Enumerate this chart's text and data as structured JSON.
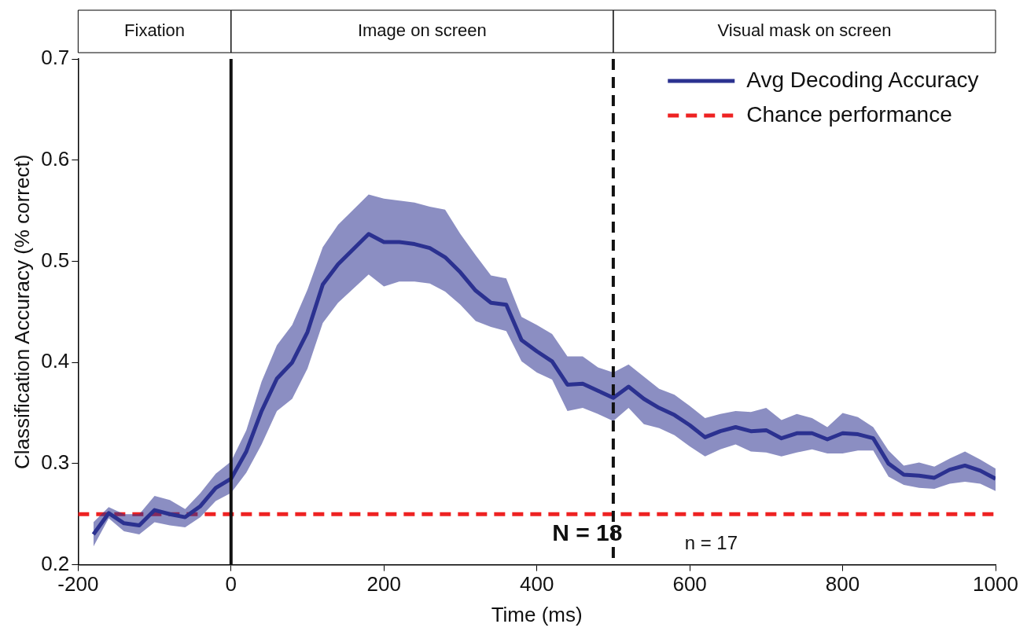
{
  "chart_data": {
    "type": "line",
    "xlabel": "Time (ms)",
    "ylabel": "Classification Accuracy (% correct)",
    "x": [
      -180,
      -160,
      -140,
      -120,
      -100,
      -80,
      -60,
      -40,
      -20,
      0,
      20,
      40,
      60,
      80,
      100,
      120,
      140,
      160,
      180,
      200,
      220,
      240,
      260,
      280,
      300,
      320,
      340,
      360,
      380,
      400,
      420,
      440,
      460,
      480,
      500,
      520,
      540,
      560,
      580,
      600,
      620,
      640,
      660,
      680,
      700,
      720,
      740,
      760,
      780,
      800,
      820,
      840,
      860,
      880,
      900,
      920,
      940,
      960,
      980,
      1000
    ],
    "series": [
      {
        "name": "Avg Decoding Accuracy",
        "color": "#2b3290",
        "values": [
          0.23,
          0.251,
          0.241,
          0.239,
          0.254,
          0.25,
          0.247,
          0.258,
          0.276,
          0.285,
          0.312,
          0.352,
          0.384,
          0.4,
          0.43,
          0.477,
          0.497,
          0.512,
          0.527,
          0.519,
          0.519,
          0.517,
          0.513,
          0.504,
          0.489,
          0.471,
          0.459,
          0.457,
          0.422,
          0.411,
          0.401,
          0.378,
          0.379,
          0.372,
          0.365,
          0.376,
          0.364,
          0.355,
          0.348,
          0.338,
          0.326,
          0.332,
          0.336,
          0.332,
          0.333,
          0.325,
          0.33,
          0.33,
          0.324,
          0.33,
          0.329,
          0.325,
          0.3,
          0.289,
          0.288,
          0.286,
          0.294,
          0.298,
          0.293,
          0.285
        ],
        "lower": [
          0.218,
          0.246,
          0.233,
          0.23,
          0.242,
          0.239,
          0.237,
          0.247,
          0.263,
          0.271,
          0.291,
          0.319,
          0.352,
          0.364,
          0.394,
          0.439,
          0.459,
          0.473,
          0.487,
          0.475,
          0.48,
          0.48,
          0.478,
          0.47,
          0.457,
          0.441,
          0.435,
          0.431,
          0.401,
          0.39,
          0.383,
          0.352,
          0.355,
          0.349,
          0.342,
          0.355,
          0.339,
          0.335,
          0.328,
          0.317,
          0.307,
          0.314,
          0.319,
          0.312,
          0.311,
          0.307,
          0.311,
          0.314,
          0.31,
          0.31,
          0.313,
          0.313,
          0.287,
          0.279,
          0.276,
          0.275,
          0.28,
          0.282,
          0.28,
          0.273
        ],
        "upper": [
          0.242,
          0.257,
          0.25,
          0.25,
          0.268,
          0.264,
          0.255,
          0.271,
          0.29,
          0.302,
          0.333,
          0.381,
          0.417,
          0.437,
          0.472,
          0.514,
          0.536,
          0.551,
          0.566,
          0.562,
          0.56,
          0.558,
          0.554,
          0.551,
          0.527,
          0.506,
          0.486,
          0.483,
          0.445,
          0.437,
          0.428,
          0.406,
          0.406,
          0.395,
          0.39,
          0.398,
          0.386,
          0.374,
          0.368,
          0.357,
          0.345,
          0.349,
          0.352,
          0.351,
          0.355,
          0.343,
          0.349,
          0.345,
          0.336,
          0.35,
          0.346,
          0.336,
          0.313,
          0.298,
          0.301,
          0.297,
          0.305,
          0.312,
          0.304,
          0.295
        ]
      },
      {
        "name": "Chance performance",
        "color": "#ee2222",
        "line_style": "dashed",
        "x": [
          -200,
          1000
        ],
        "values": [
          0.25,
          0.25
        ]
      }
    ],
    "xlim": [
      -200,
      1000
    ],
    "xticks": [
      -200,
      0,
      200,
      400,
      600,
      800,
      1000
    ],
    "ylim": [
      0.2,
      0.7
    ],
    "yticks": [
      0.2,
      0.3,
      0.4,
      0.5,
      0.6,
      0.7
    ],
    "grid": false,
    "legend": "top right",
    "marker": "none",
    "line_style": "solid",
    "ref_lines": [
      {
        "axis": "x",
        "value": 0,
        "color": "#111111",
        "line_style": "solid"
      },
      {
        "axis": "x",
        "value": 500,
        "color": "#111111",
        "line_style": "dashed"
      }
    ],
    "annotations": [
      "Fixation",
      "Image on screen",
      "Visual mask on screen",
      "N = 18",
      "n = 17"
    ]
  }
}
